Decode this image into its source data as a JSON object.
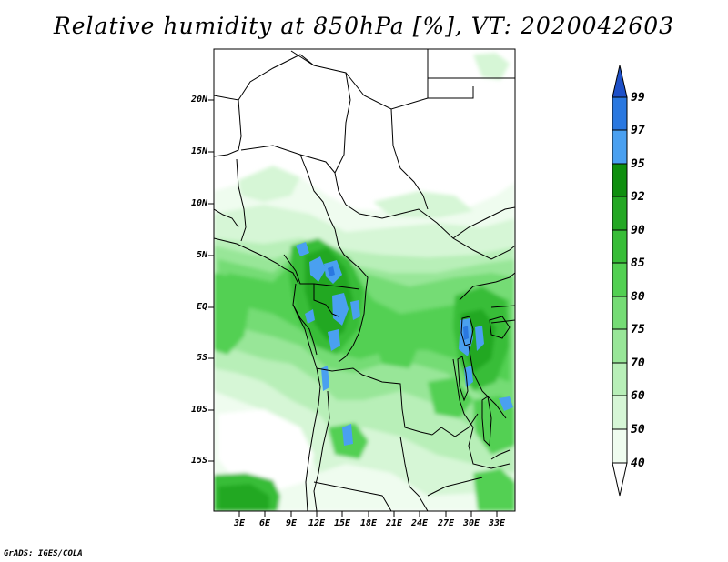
{
  "title": "Relative humidity at 850hPa [%], VT: 2020042603",
  "map": {
    "lat_labels": [
      "20N",
      "15N",
      "10N",
      "5N",
      "EQ",
      "5S",
      "10S",
      "15S"
    ],
    "lon_labels": [
      "3E",
      "6E",
      "9E",
      "12E",
      "15E",
      "18E",
      "21E",
      "24E",
      "27E",
      "30E",
      "33E"
    ],
    "lat_range": [
      "19S",
      "24N"
    ],
    "lon_range": [
      "0",
      "35E"
    ]
  },
  "colorbar": {
    "levels": [
      "99",
      "97",
      "95",
      "92",
      "90",
      "85",
      "80",
      "75",
      "70",
      "60",
      "50",
      "40"
    ],
    "colors": {
      "above_99": "#1e50c8",
      "97_99": "#2a78e0",
      "95_97": "#4aa0f0",
      "92_95": "#0f8f0f",
      "90_92": "#24a824",
      "85_90": "#37bd37",
      "80_85": "#52d052",
      "75_80": "#75dc75",
      "70_75": "#98e698",
      "60_70": "#b8efb8",
      "50_60": "#d6f6d6",
      "40_50": "#effcef",
      "below_40": "#ffffff"
    }
  },
  "credit": "GrADS: IGES/COLA"
}
